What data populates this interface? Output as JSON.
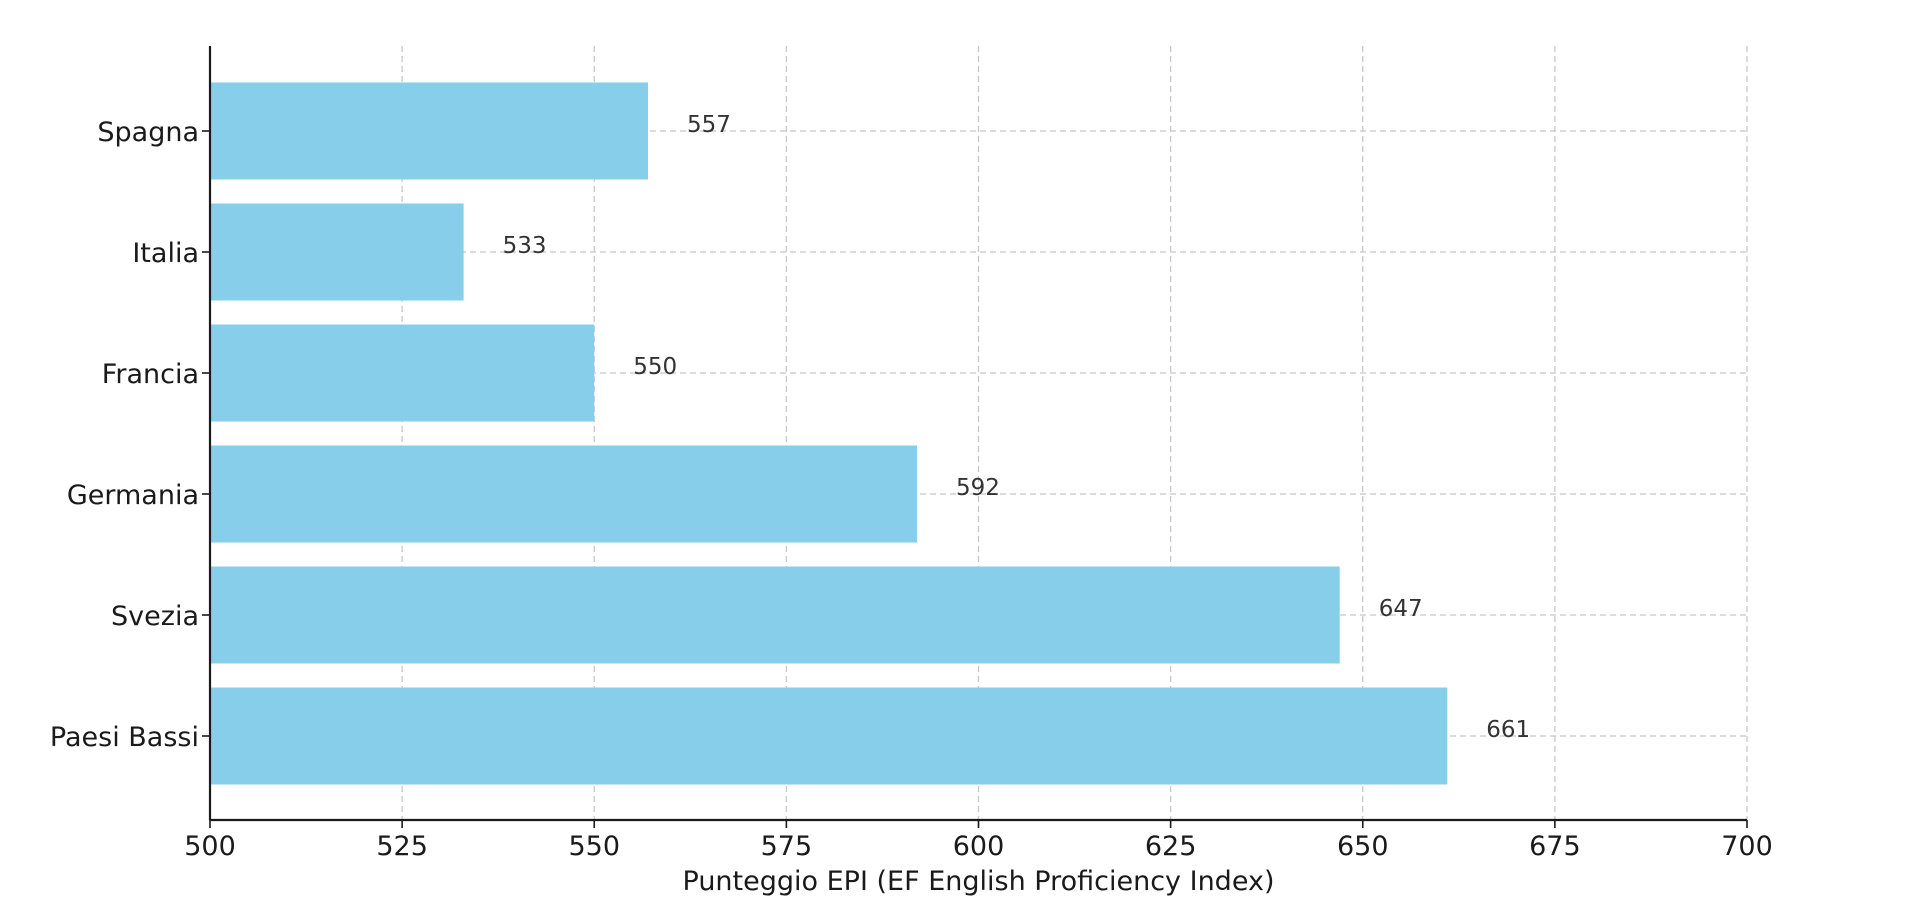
{
  "chart_data": {
    "type": "bar",
    "orientation": "horizontal",
    "title": "",
    "xlabel": "Punteggio EPI (EF English Proficiency Index)",
    "ylabel": "",
    "categories": [
      "Spagna",
      "Italia",
      "Francia",
      "Germania",
      "Svezia",
      "Paesi Bassi"
    ],
    "values": [
      557,
      533,
      550,
      592,
      647,
      661
    ],
    "value_labels": [
      "557",
      "533",
      "550",
      "592",
      "647",
      "661"
    ],
    "xlim": [
      500,
      700
    ],
    "xticks": [
      500,
      525,
      550,
      575,
      600,
      625,
      650,
      675,
      700
    ],
    "xtick_labels": [
      "500",
      "525",
      "550",
      "575",
      "600",
      "625",
      "650",
      "675",
      "700"
    ],
    "grid": true,
    "bar_color": "#87CEEB"
  }
}
